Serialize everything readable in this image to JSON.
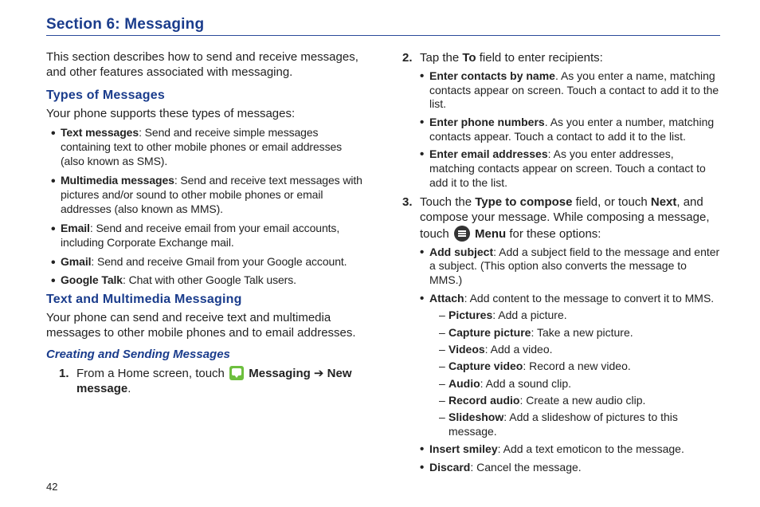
{
  "section_title": "Section 6: Messaging",
  "page_number": "42",
  "left": {
    "intro": "This section describes how to send and receive messages, and other features associated with messaging.",
    "types_heading": "Types of Messages",
    "types_intro": "Your phone supports these types of messages:",
    "types": [
      {
        "label": "Text messages",
        "text": ": Send and receive simple messages containing text to other mobile phones or email addresses (also known as SMS)."
      },
      {
        "label": "Multimedia messages",
        "text": ": Send and receive text messages with pictures and/or sound to other mobile phones or email addresses (also known as MMS)."
      },
      {
        "label": "Email",
        "text": ": Send and receive email from your email accounts, including Corporate Exchange mail."
      },
      {
        "label": "Gmail",
        "text": ": Send and receive Gmail from your Google account."
      },
      {
        "label": "Google Talk",
        "text": ": Chat with other Google Talk users."
      }
    ],
    "tmm_heading": "Text and Multimedia Messaging",
    "tmm_intro": "Your phone can send and receive text and multimedia messages to other mobile phones and to email addresses.",
    "creating_heading": "Creating and Sending Messages",
    "step1_pre": "From a Home screen, touch ",
    "step1_msg_label": " Messaging",
    "step1_arrow": " ➔ ",
    "step1_new": "New message",
    "step1_dot": "."
  },
  "right": {
    "step2_text_pre": "Tap the ",
    "step2_to": "To",
    "step2_text_post": " field to enter recipients:",
    "step2_bullets": [
      {
        "label": "Enter contacts by name",
        "text": ". As you enter a name, matching contacts appear on screen. Touch a contact to add it to the list."
      },
      {
        "label": "Enter phone numbers",
        "text": ". As you enter a number, matching contacts appear. Touch a contact to add it to the list."
      },
      {
        "label": "Enter email addresses",
        "text": ": As you enter addresses, matching contacts appear on screen. Touch a contact to add it to the list."
      }
    ],
    "step3_pre": "Touch the ",
    "step3_type_compose": "Type to compose",
    "step3_mid1": " field, or touch ",
    "step3_next": "Next",
    "step3_mid2": ", and compose your message. While composing a message, touch ",
    "step3_menu": " Menu",
    "step3_post": " for these options:",
    "step3_bullets": [
      {
        "label": "Add subject",
        "text": ": Add a subject field to the message and enter a subject. (This option also converts the message to MMS.)"
      },
      {
        "label": "Attach",
        "text": ": Add content to the message to convert it to MMS.",
        "dashes": [
          {
            "label": "Pictures",
            "text": ": Add a picture."
          },
          {
            "label": "Capture picture",
            "text": ": Take a new picture."
          },
          {
            "label": "Videos",
            "text": ": Add a video."
          },
          {
            "label": "Capture video",
            "text": ": Record a new video."
          },
          {
            "label": "Audio",
            "text": ": Add a sound clip."
          },
          {
            "label": "Record audio",
            "text": ": Create a new audio clip."
          },
          {
            "label": "Slideshow",
            "text": ": Add a slideshow of pictures to this message."
          }
        ]
      },
      {
        "label": "Insert smiley",
        "text": ": Add a text emoticon to the message."
      },
      {
        "label": "Discard",
        "text": ": Cancel the message."
      }
    ]
  }
}
